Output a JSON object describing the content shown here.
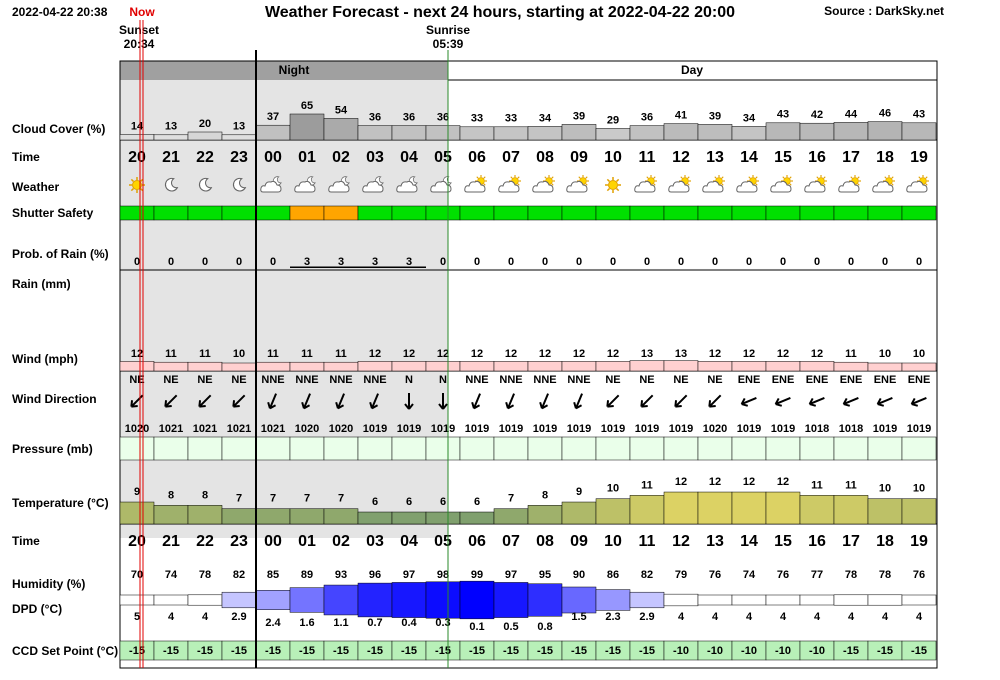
{
  "header": {
    "timestamp": "2022-04-22 20:38",
    "now": "Now",
    "title": "Weather Forecast - next 24 hours, starting at 2022-04-22 20:00",
    "source": "Source : DarkSky.net"
  },
  "sunset": {
    "label": "Sunset",
    "time": "20:34"
  },
  "sunrise": {
    "label": "Sunrise",
    "time": "05:39"
  },
  "periods": {
    "night": "Night",
    "day": "Day"
  },
  "hours": [
    "20",
    "21",
    "22",
    "23",
    "00",
    "01",
    "02",
    "03",
    "04",
    "05",
    "06",
    "07",
    "08",
    "09",
    "10",
    "11",
    "12",
    "13",
    "14",
    "15",
    "16",
    "17",
    "18",
    "19"
  ],
  "rows": {
    "cloud_cover": {
      "label": "Cloud Cover (%)",
      "values": [
        14,
        13,
        20,
        13,
        37,
        65,
        54,
        36,
        36,
        36,
        33,
        33,
        34,
        39,
        29,
        36,
        41,
        39,
        34,
        43,
        42,
        44,
        46,
        43
      ]
    },
    "time": {
      "label": "Time"
    },
    "weather": {
      "label": "Weather",
      "icons": [
        "sun",
        "moon",
        "moon",
        "moon",
        "cloud-moon",
        "cloud-moon",
        "cloud-moon",
        "cloud-moon",
        "cloud-moon",
        "cloud-moon",
        "cloud-sun",
        "cloud-sun",
        "cloud-sun",
        "cloud-sun",
        "sun",
        "cloud-sun",
        "cloud-sun",
        "cloud-sun",
        "cloud-sun",
        "cloud-sun",
        "cloud-sun",
        "cloud-sun",
        "cloud-sun",
        "cloud-sun"
      ]
    },
    "shutter_safety": {
      "label": "Shutter Safety",
      "colors": [
        "#00e000",
        "#00e000",
        "#00e000",
        "#00e000",
        "#00e000",
        "#ffa500",
        "#ffa500",
        "#00e000",
        "#00e000",
        "#00e000",
        "#00e000",
        "#00e000",
        "#00e000",
        "#00e000",
        "#00e000",
        "#00e000",
        "#00e000",
        "#00e000",
        "#00e000",
        "#00e000",
        "#00e000",
        "#00e000",
        "#00e000",
        "#00e000"
      ]
    },
    "rain_probability": {
      "label": "Prob. of Rain (%)",
      "values": [
        0,
        0,
        0,
        0,
        0,
        3,
        3,
        3,
        3,
        0,
        0,
        0,
        0,
        0,
        0,
        0,
        0,
        0,
        0,
        0,
        0,
        0,
        0,
        0
      ]
    },
    "rain": {
      "label": "Rain (mm)"
    },
    "wind": {
      "label": "Wind (mph)",
      "values": [
        12,
        11,
        11,
        10,
        11,
        11,
        11,
        12,
        12,
        12,
        12,
        12,
        12,
        12,
        12,
        13,
        13,
        12,
        12,
        12,
        12,
        11,
        10,
        10
      ]
    },
    "wind_direction": {
      "label": "Wind Direction",
      "values": [
        "NE",
        "NE",
        "NE",
        "NE",
        "NNE",
        "NNE",
        "NNE",
        "NNE",
        "N",
        "N",
        "NNE",
        "NNE",
        "NNE",
        "NNE",
        "NE",
        "NE",
        "NE",
        "NE",
        "ENE",
        "ENE",
        "ENE",
        "ENE",
        "ENE",
        "ENE"
      ],
      "degrees": [
        45,
        45,
        45,
        45,
        22.5,
        22.5,
        22.5,
        22.5,
        0,
        0,
        22.5,
        22.5,
        22.5,
        22.5,
        45,
        45,
        45,
        45,
        67.5,
        67.5,
        67.5,
        67.5,
        67.5,
        67.5
      ]
    },
    "pressure": {
      "label": "Pressure (mb)",
      "values": [
        1020,
        1021,
        1021,
        1021,
        1021,
        1020,
        1020,
        1019,
        1019,
        1019,
        1019,
        1019,
        1019,
        1019,
        1019,
        1019,
        1019,
        1020,
        1019,
        1019,
        1018,
        1018,
        1019,
        1019
      ]
    },
    "temperature": {
      "label": "Temperature (°C)",
      "values": [
        9,
        8,
        8,
        7,
        7,
        7,
        7,
        6,
        6,
        6,
        6,
        7,
        8,
        9,
        10,
        11,
        12,
        12,
        12,
        12,
        11,
        11,
        10,
        10
      ]
    },
    "humidity": {
      "label": "Humidity (%)",
      "values": [
        70,
        74,
        78,
        82,
        85,
        89,
        93,
        96,
        97,
        98,
        99,
        97,
        95,
        90,
        86,
        82,
        79,
        76,
        74,
        76,
        77,
        78,
        78,
        76
      ]
    },
    "dpd": {
      "label": "DPD (°C)",
      "values": [
        5,
        4,
        4,
        2.9,
        2.4,
        1.6,
        1.1,
        0.7,
        0.4,
        0.3,
        0.1,
        0.5,
        0.8,
        1.5,
        2.3,
        2.9,
        4,
        4,
        4,
        4,
        4,
        4,
        4,
        4
      ]
    },
    "ccd_set_point": {
      "label": "CCD Set Point (°C)",
      "values": [
        -15,
        -15,
        -15,
        -15,
        -15,
        -15,
        -15,
        -15,
        -15,
        -15,
        -15,
        -15,
        -15,
        -15,
        -15,
        -15,
        -10,
        -10,
        -10,
        -10,
        -10,
        -15,
        -15,
        -15
      ]
    }
  }
}
